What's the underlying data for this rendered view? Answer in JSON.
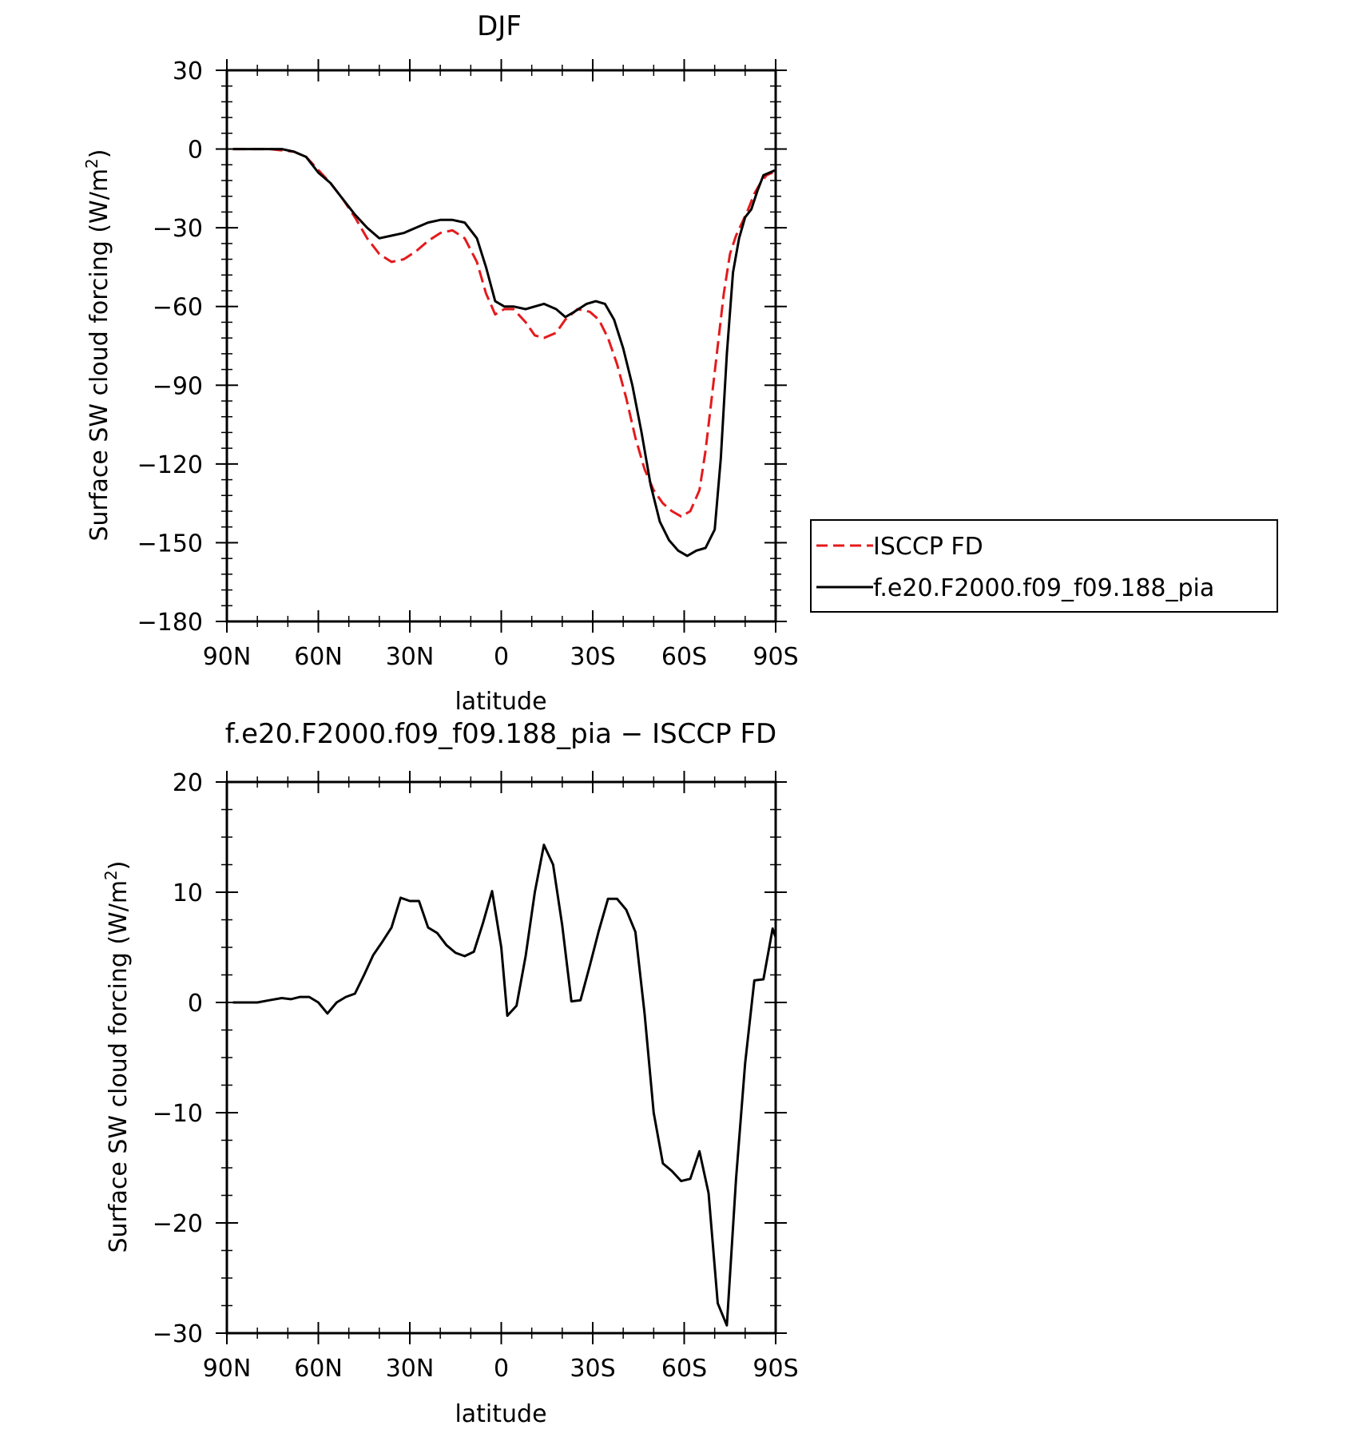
{
  "chart_data": [
    {
      "type": "line",
      "title": "DJF",
      "xlabel": "latitude",
      "ylabel": "Surface SW cloud forcing (W/m",
      "ylabel_sup": "2",
      "ylabel_close": ")",
      "xlim": [
        90,
        -90
      ],
      "ylim": [
        -180,
        30
      ],
      "x_ticks": [
        90,
        60,
        30,
        0,
        -30,
        -60,
        -90
      ],
      "x_tick_labels": [
        "90N",
        "60N",
        "30N",
        "0",
        "30S",
        "60S",
        "90S"
      ],
      "y_ticks": [
        30,
        0,
        -30,
        -60,
        -90,
        -120,
        -150,
        -180
      ],
      "y_tick_labels": [
        "30",
        "0",
        "−30",
        "−60",
        "−90",
        "−120",
        "−150",
        "−180"
      ],
      "legend_placement": "right",
      "series": [
        {
          "name": "ISCCP FD",
          "color": "#e41a1c",
          "dash": "dashed",
          "points": [
            [
              88,
              0
            ],
            [
              84,
              0
            ],
            [
              80,
              0
            ],
            [
              76,
              0
            ],
            [
              72,
              -0.5
            ],
            [
              68,
              -1
            ],
            [
              64,
              -3
            ],
            [
              60,
              -8
            ],
            [
              56,
              -13
            ],
            [
              52,
              -19
            ],
            [
              48,
              -26
            ],
            [
              44,
              -34
            ],
            [
              40,
              -40
            ],
            [
              36,
              -43
            ],
            [
              32,
              -42
            ],
            [
              28,
              -39
            ],
            [
              24,
              -35
            ],
            [
              20,
              -32
            ],
            [
              16,
              -31
            ],
            [
              12,
              -34
            ],
            [
              8,
              -43
            ],
            [
              5,
              -55
            ],
            [
              2,
              -63
            ],
            [
              -1,
              -61
            ],
            [
              -4,
              -61
            ],
            [
              -8,
              -66
            ],
            [
              -11,
              -71
            ],
            [
              -14,
              -72
            ],
            [
              -18,
              -70
            ],
            [
              -21,
              -65
            ],
            [
              -25,
              -61
            ],
            [
              -29,
              -62
            ],
            [
              -32,
              -65
            ],
            [
              -35,
              -72
            ],
            [
              -38,
              -82
            ],
            [
              -41,
              -95
            ],
            [
              -44,
              -110
            ],
            [
              -47,
              -122
            ],
            [
              -50,
              -130
            ],
            [
              -53,
              -135
            ],
            [
              -56,
              -138
            ],
            [
              -59,
              -140
            ],
            [
              -62,
              -138
            ],
            [
              -65,
              -130
            ],
            [
              -67,
              -115
            ],
            [
              -69,
              -95
            ],
            [
              -71,
              -75
            ],
            [
              -73,
              -55
            ],
            [
              -75,
              -40
            ],
            [
              -77,
              -33
            ],
            [
              -79,
              -28
            ],
            [
              -81,
              -23
            ],
            [
              -83,
              -17
            ],
            [
              -85,
              -13
            ],
            [
              -87,
              -10
            ],
            [
              -89,
              -9
            ]
          ]
        },
        {
          "name": "f.e20.F2000.f09_f09.188_pia",
          "color": "#000000",
          "dash": "solid",
          "points": [
            [
              88,
              0
            ],
            [
              84,
              0
            ],
            [
              80,
              0
            ],
            [
              76,
              0
            ],
            [
              72,
              0
            ],
            [
              68,
              -1
            ],
            [
              64,
              -3
            ],
            [
              60,
              -9
            ],
            [
              56,
              -13
            ],
            [
              52,
              -19
            ],
            [
              48,
              -25
            ],
            [
              44,
              -30
            ],
            [
              40,
              -34
            ],
            [
              36,
              -33
            ],
            [
              32,
              -32
            ],
            [
              28,
              -30
            ],
            [
              24,
              -28
            ],
            [
              20,
              -27
            ],
            [
              16,
              -27
            ],
            [
              12,
              -28
            ],
            [
              8,
              -34
            ],
            [
              5,
              -45
            ],
            [
              2,
              -58
            ],
            [
              -1,
              -60
            ],
            [
              -4,
              -60
            ],
            [
              -8,
              -61
            ],
            [
              -11,
              -60
            ],
            [
              -14,
              -59
            ],
            [
              -18,
              -61
            ],
            [
              -21,
              -64
            ],
            [
              -24,
              -62
            ],
            [
              -28,
              -59
            ],
            [
              -31,
              -58
            ],
            [
              -34,
              -59
            ],
            [
              -37,
              -65
            ],
            [
              -40,
              -76
            ],
            [
              -43,
              -90
            ],
            [
              -46,
              -108
            ],
            [
              -49,
              -128
            ],
            [
              -52,
              -142
            ],
            [
              -55,
              -149
            ],
            [
              -58,
              -153
            ],
            [
              -61,
              -155
            ],
            [
              -64,
              -153
            ],
            [
              -67,
              -152
            ],
            [
              -70,
              -145
            ],
            [
              -72,
              -118
            ],
            [
              -74,
              -78
            ],
            [
              -76,
              -47
            ],
            [
              -78,
              -34
            ],
            [
              -80,
              -26
            ],
            [
              -82,
              -23
            ],
            [
              -84,
              -16
            ],
            [
              -86,
              -10
            ],
            [
              -88,
              -9
            ],
            [
              -90,
              -8
            ],
            [
              -92,
              -7
            ]
          ]
        }
      ]
    },
    {
      "type": "line",
      "title": "f.e20.F2000.f09_f09.188_pia − ISCCP FD",
      "xlabel": "latitude",
      "ylabel": "Surface SW cloud forcing (W/m",
      "ylabel_sup": "2",
      "ylabel_close": ")",
      "xlim": [
        90,
        -90
      ],
      "ylim": [
        -30,
        20
      ],
      "x_ticks": [
        90,
        60,
        30,
        0,
        -30,
        -60,
        -90
      ],
      "x_tick_labels": [
        "90N",
        "60N",
        "30N",
        "0",
        "30S",
        "60S",
        "90S"
      ],
      "y_ticks": [
        20,
        10,
        0,
        -10,
        -20,
        -30
      ],
      "y_tick_labels": [
        "20",
        "10",
        "0",
        "−10",
        "−20",
        "−30"
      ],
      "series": [
        {
          "color": "#000000",
          "dash": "solid",
          "points": [
            [
              88,
              0
            ],
            [
              84,
              0
            ],
            [
              80,
              0
            ],
            [
              76,
              0.2
            ],
            [
              72,
              0.4
            ],
            [
              69,
              0.3
            ],
            [
              66,
              0.5
            ],
            [
              63,
              0.5
            ],
            [
              60,
              0
            ],
            [
              57,
              -1
            ],
            [
              54,
              0
            ],
            [
              51,
              0.5
            ],
            [
              48,
              0.8
            ],
            [
              45,
              2.5
            ],
            [
              42,
              4.3
            ],
            [
              39,
              5.5
            ],
            [
              36,
              6.8
            ],
            [
              33,
              9.5
            ],
            [
              30,
              9.2
            ],
            [
              27,
              9.2
            ],
            [
              24,
              6.8
            ],
            [
              21,
              6.3
            ],
            [
              18,
              5.2
            ],
            [
              15,
              4.5
            ],
            [
              12,
              4.2
            ],
            [
              9,
              4.6
            ],
            [
              6,
              7.2
            ],
            [
              3,
              10.1
            ],
            [
              0,
              5
            ],
            [
              -2,
              -1.2
            ],
            [
              -5,
              -0.3
            ],
            [
              -8,
              4.2
            ],
            [
              -11,
              10
            ],
            [
              -14,
              14.3
            ],
            [
              -17,
              12.5
            ],
            [
              -20,
              7
            ],
            [
              -23,
              0.1
            ],
            [
              -26,
              0.2
            ],
            [
              -29,
              3.3
            ],
            [
              -32,
              6.5
            ],
            [
              -35,
              9.4
            ],
            [
              -38,
              9.4
            ],
            [
              -41,
              8.4
            ],
            [
              -44,
              6.4
            ],
            [
              -47,
              -1
            ],
            [
              -50,
              -10
            ],
            [
              -53,
              -14.6
            ],
            [
              -56,
              -15.3
            ],
            [
              -59,
              -16.2
            ],
            [
              -62,
              -16
            ],
            [
              -65,
              -13.5
            ],
            [
              -68,
              -17.3
            ],
            [
              -71,
              -27.3
            ],
            [
              -74,
              -29.3
            ],
            [
              -77,
              -16
            ],
            [
              -80,
              -5.5
            ],
            [
              -83,
              2
            ],
            [
              -86,
              2.1
            ],
            [
              -89,
              6.7
            ],
            [
              -92,
              4.3
            ],
            [
              -95,
              1.5
            ],
            [
              -98,
              1.9
            ]
          ]
        }
      ]
    }
  ]
}
